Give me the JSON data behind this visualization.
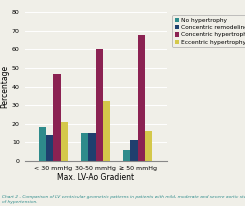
{
  "categories": [
    "< 30 mmHg",
    "30-50 mmHg",
    "≥ 50 mmHg"
  ],
  "series": [
    {
      "label": "No hypertrophy",
      "color": "#2E8B8B",
      "values": [
        18,
        15,
        6
      ]
    },
    {
      "label": "Concentric remodeling",
      "color": "#1F3F6E",
      "values": [
        14,
        15,
        11
      ]
    },
    {
      "label": "Concentric hypertrophy",
      "color": "#8B2252",
      "values": [
        47,
        60,
        68
      ]
    },
    {
      "label": "Eccentric hypertrophy",
      "color": "#D4C84A",
      "values": [
        21,
        32,
        16
      ]
    }
  ],
  "xlabel": "Max. LV-Ao Gradient",
  "ylabel": "Percentage",
  "ylim": [
    0,
    80
  ],
  "yticks": [
    0,
    10,
    20,
    30,
    40,
    50,
    60,
    70,
    80
  ],
  "caption": "Chart 2 - Comparison of LV ventricular geometric patterns in patients with mild, moderate and severe aortic stenosis, and presence\nof hypertension.",
  "bg_color": "#F0EFE8",
  "legend_fontsize": 4.2,
  "axis_label_fontsize": 5.5,
  "tick_fontsize": 4.5,
  "caption_fontsize": 3.2,
  "bar_width": 0.055,
  "group_positions": [
    0.22,
    0.54,
    0.86
  ]
}
